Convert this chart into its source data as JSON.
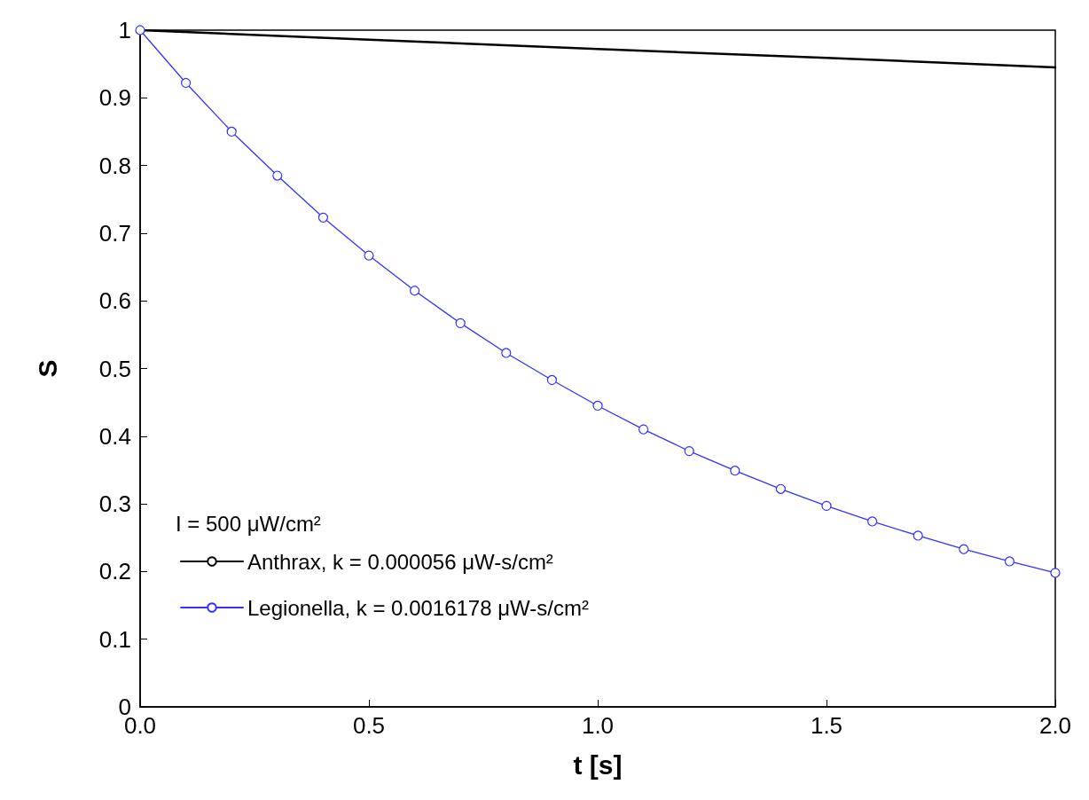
{
  "chart_data": {
    "type": "line",
    "xlabel": "t [s]",
    "ylabel": "S",
    "legend_title": "I = 500 μW/cm²",
    "legend": "bottom left",
    "grid": false,
    "xlim": [
      0,
      2
    ],
    "xticks": [
      {
        "value": 0,
        "label": "0.0"
      },
      {
        "value": 0.5,
        "label": "0.5"
      },
      {
        "value": 1,
        "label": "1.0"
      },
      {
        "value": 1.5,
        "label": "1.5"
      },
      {
        "value": 2,
        "label": "2.0"
      }
    ],
    "ylim": [
      0,
      1
    ],
    "yticks": [
      0,
      0.1,
      0.2,
      0.3,
      0.4,
      0.5,
      0.6,
      0.7,
      0.8,
      0.9,
      1
    ],
    "series": [
      {
        "name": "Anthrax, k = 0.000056 μW-s/cm²",
        "color": "#000000",
        "marker": "none",
        "x": [
          0,
          0.5,
          1,
          1.5,
          2
        ],
        "values": [
          1,
          0.986,
          0.972,
          0.959,
          0.945
        ]
      },
      {
        "name": "Legionella, k = 0.0016178 μW-s/cm²",
        "color": "#3333ff",
        "marker": "circle",
        "x": [
          0,
          0.1,
          0.2,
          0.3,
          0.4,
          0.5,
          0.6,
          0.7,
          0.8,
          0.9,
          1,
          1.1,
          1.2,
          1.3,
          1.4,
          1.5,
          1.6,
          1.7,
          1.8,
          1.9,
          2
        ],
        "values": [
          1,
          0.922,
          0.85,
          0.785,
          0.723,
          0.667,
          0.615,
          0.567,
          0.523,
          0.483,
          0.445,
          0.41,
          0.378,
          0.349,
          0.322,
          0.297,
          0.274,
          0.253,
          0.233,
          0.215,
          0.198
        ]
      }
    ]
  }
}
